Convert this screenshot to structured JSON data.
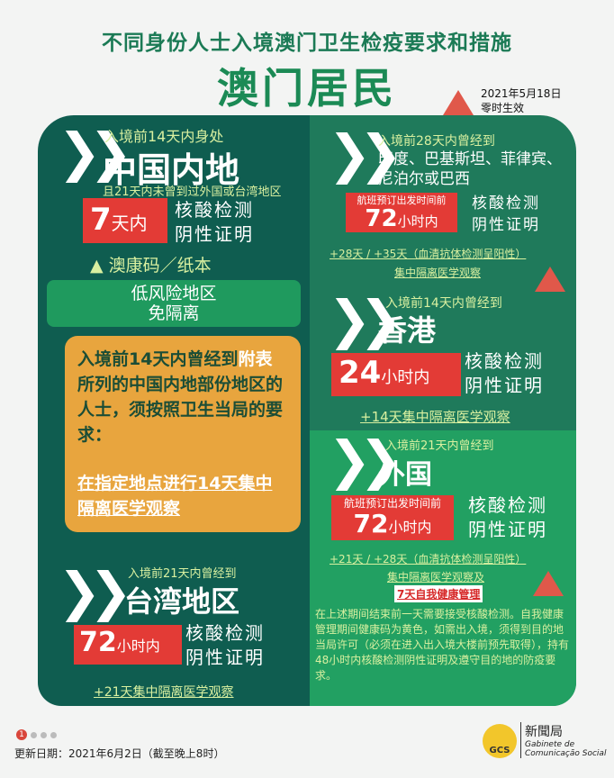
{
  "header": {
    "subtitle": "不同身份人士入境澳门卫生检疫要求和措施",
    "title": "澳门居民",
    "effective_date": "2021年5月18日",
    "effective_note": "零时生效"
  },
  "mainland": {
    "pre": "入境前14天内身处",
    "region": "中国内地",
    "cond": "且21天内未曾到过外国或台湾地区",
    "time_num": "7",
    "time_unit": "天内",
    "test1": "核酸检测",
    "test2": "阴性证明",
    "code": "▲ 澳康码／纸本",
    "lowrisk1": "低风险地区",
    "lowrisk2": "免隔离"
  },
  "mainland_risk": {
    "text_a": "入境前14天内曾经到",
    "text_link": "附表",
    "text_b": "所列的中国内地部份地区的人士，须按照卫生当局的要求：",
    "action": "在指定地点进行14天集中隔离医学观察"
  },
  "taiwan": {
    "pre": "入境前21天内曾经到",
    "region": "台湾地区",
    "time_num": "72",
    "time_unit": "小时内",
    "test1": "核酸检测",
    "test2": "阴性证明",
    "extra": "+21天集中隔离医学观察"
  },
  "india": {
    "pre": "入境前28天内曾经到",
    "region1": "印度、巴基斯坦、菲律宾、",
    "region2": "尼泊尔或巴西",
    "flight": "航班预订出发时间前",
    "time_num": "72",
    "time_unit": "小时内",
    "test1": "核酸检测",
    "test2": "阴性证明",
    "extra1": "+28天 / +35天（血清抗体检测呈阳性）",
    "extra2": "集中隔离医学观察"
  },
  "hongkong": {
    "pre": "入境前14天内曾经到",
    "region": "香港",
    "time_num": "24",
    "time_unit": "小时内",
    "test1": "核酸检测",
    "test2": "阴性证明",
    "extra": "+14天集中隔离医学观察"
  },
  "foreign": {
    "pre": "入境前21天内曾经到",
    "region": "外国",
    "flight": "航班预订出发时间前",
    "time_num": "72",
    "time_unit": "小时内",
    "test1": "核酸检测",
    "test2": "阴性证明",
    "extra1": "+21天 / +28天（血清抗体检测呈阳性）",
    "extra2": "集中隔离医学观察及",
    "extra3": "7天自我健康管理",
    "note": "在上述期间结束前一天需要接受核酸检测。自我健康管理期间健康码为黄色，如需出入境，须得到目的地当局许可（必须在进入出入境大楼前预先取得），持有48小时内核酸检测阴性证明及遵守目的地的防疫要求。"
  },
  "footer": {
    "page": "1",
    "updated": "更新日期：2021年6月2日（截至晚上8时）",
    "logo_cn": "新聞局",
    "logo_pt1": "Gabinete de",
    "logo_pt2": "Comunicação Social",
    "logo_mark": "GCS"
  },
  "colors": {
    "dark_panel": "#0f5d50",
    "right_panel": "#1f7a5b",
    "foreign_panel": "#22a062",
    "orange": "#e8a53e",
    "red": "#e33b36"
  }
}
